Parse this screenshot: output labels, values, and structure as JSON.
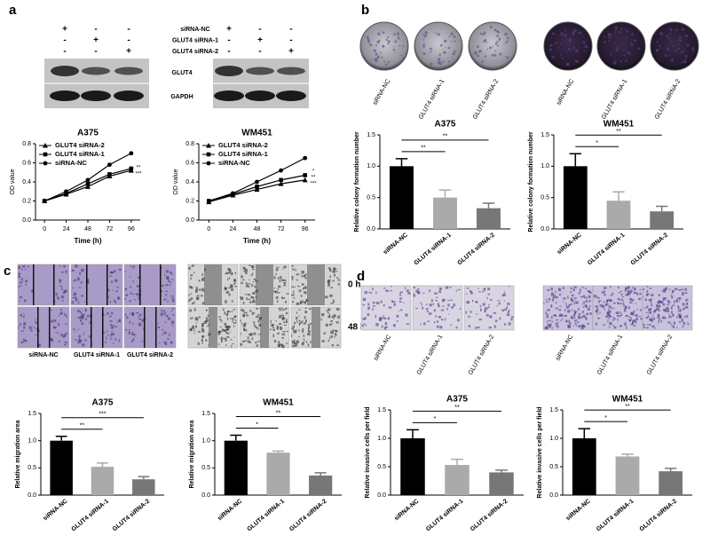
{
  "panels": [
    "a",
    "b",
    "c",
    "d"
  ],
  "blot": {
    "rows": [
      {
        "label": "siRNA-NC",
        "signs": [
          "+",
          "-",
          "-",
          "+",
          "-",
          "-"
        ]
      },
      {
        "label": "GLUT4  siRNA-1",
        "signs": [
          "-",
          "+",
          "-",
          "-",
          "+",
          "-"
        ]
      },
      {
        "label": "GLUT4  siRNA-2",
        "signs": [
          "-",
          "-",
          "+",
          "-",
          "-",
          "+"
        ]
      }
    ],
    "bands": [
      "GLUT4",
      "GAPDH"
    ]
  },
  "image_labels": [
    "siRNA-NC",
    "GLUT4 siRNA-1",
    "GLUT4 siRNA-2"
  ],
  "wound_times": [
    "0 h",
    "48 h"
  ],
  "chart_data": [
    {
      "type": "line",
      "title": "A375",
      "xlabel": "Time (h)",
      "ylabel": "OD value",
      "x": [
        0,
        24,
        48,
        72,
        96
      ],
      "xlim": [
        -10,
        106
      ],
      "xticks": [
        0,
        24,
        48,
        72,
        96
      ],
      "ylim": [
        0,
        0.8
      ],
      "yticks": [
        {
          "value": 0,
          "label": "0.0"
        },
        0.2,
        0.4,
        0.6,
        0.8
      ],
      "series": [
        {
          "name": "GLUT4 siRNA-2",
          "color": "#000000",
          "marker": "triangle",
          "values": [
            0.2,
            0.27,
            0.35,
            0.46,
            0.52
          ]
        },
        {
          "name": "GLUT4 siRNA-1",
          "color": "#000000",
          "marker": "square",
          "values": [
            0.2,
            0.28,
            0.38,
            0.48,
            0.54
          ]
        },
        {
          "name": "siRNA-NC",
          "color": "#000000",
          "marker": "circle",
          "values": [
            0.2,
            0.3,
            0.42,
            0.58,
            0.7
          ]
        }
      ],
      "annotations": [
        "**",
        "***"
      ]
    },
    {
      "type": "line",
      "title": "WM451",
      "xlabel": "Time (h)",
      "ylabel": "OD value",
      "x": [
        0,
        24,
        48,
        72,
        96
      ],
      "xlim": [
        -10,
        106
      ],
      "xticks": [
        0,
        24,
        48,
        72,
        96
      ],
      "ylim": [
        0,
        0.8
      ],
      "yticks": [
        {
          "value": 0,
          "label": "0.0"
        },
        0.2,
        0.4,
        0.6,
        0.8
      ],
      "series": [
        {
          "name": "GLUT4 siRNA-2",
          "color": "#000000",
          "marker": "triangle",
          "values": [
            0.19,
            0.26,
            0.32,
            0.38,
            0.42
          ]
        },
        {
          "name": "GLUT4 siRNA-1",
          "color": "#000000",
          "marker": "square",
          "values": [
            0.2,
            0.27,
            0.35,
            0.42,
            0.47
          ]
        },
        {
          "name": "siRNA-NC",
          "color": "#000000",
          "marker": "circle",
          "values": [
            0.2,
            0.28,
            0.4,
            0.52,
            0.65
          ]
        }
      ],
      "annotations": [
        "*",
        "**",
        "***"
      ]
    },
    {
      "type": "bar",
      "title": "A375",
      "ylabel": "Relative  colony formation number",
      "categories": [
        "siRNA-NC",
        "GLUT4 siRNA-1",
        "GLUT4 siRNA-2"
      ],
      "colors": [
        "#000000",
        "#aaaaaa",
        "#777777"
      ],
      "values": [
        1.0,
        0.5,
        0.33
      ],
      "errors": [
        0.12,
        0.12,
        0.08
      ],
      "ylim": [
        0,
        1.5
      ],
      "yticks": [
        {
          "value": 0,
          "label": "0.0"
        },
        0.5,
        {
          "value": 1,
          "label": "1.0"
        },
        1.5
      ],
      "annotations": [
        "**",
        "**"
      ]
    },
    {
      "type": "bar",
      "title": "WM451",
      "ylabel": "Relative  colony formation number",
      "categories": [
        "siRNA-NC",
        "GLUT4 siRNA-1",
        "GLUT4 siRNA-2"
      ],
      "colors": [
        "#000000",
        "#aaaaaa",
        "#777777"
      ],
      "values": [
        1.0,
        0.45,
        0.28
      ],
      "errors": [
        0.2,
        0.14,
        0.08
      ],
      "ylim": [
        0,
        1.5
      ],
      "yticks": [
        {
          "value": 0,
          "label": "0.0"
        },
        0.5,
        {
          "value": 1,
          "label": "1.0"
        },
        1.5
      ],
      "annotations": [
        "*",
        "**"
      ]
    },
    {
      "type": "bar",
      "title": "A375",
      "ylabel": "Relative migration area",
      "categories": [
        "siRNA-NC",
        "GLUT4 siRNA-1",
        "GLUT4 siRNA-2"
      ],
      "colors": [
        "#000000",
        "#aaaaaa",
        "#777777"
      ],
      "values": [
        1.0,
        0.52,
        0.29
      ],
      "errors": [
        0.08,
        0.07,
        0.05
      ],
      "ylim": [
        0,
        1.5
      ],
      "yticks": [
        {
          "value": 0,
          "label": "0.0"
        },
        0.5,
        {
          "value": 1,
          "label": "1.0"
        },
        1.5
      ],
      "annotations": [
        "**",
        "***"
      ]
    },
    {
      "type": "bar",
      "title": "WM451",
      "ylabel": "Relative migration area",
      "categories": [
        "siRNA-NC",
        "GLUT4 siRNA-1",
        "GLUT4 siRNA-2"
      ],
      "colors": [
        "#000000",
        "#aaaaaa",
        "#777777"
      ],
      "values": [
        1.0,
        0.78,
        0.36
      ],
      "errors": [
        0.1,
        0.03,
        0.05
      ],
      "ylim": [
        0,
        1.5
      ],
      "yticks": [
        {
          "value": 0,
          "label": "0.0"
        },
        0.5,
        {
          "value": 1,
          "label": "1.0"
        },
        1.5
      ],
      "annotations": [
        "*",
        "**"
      ]
    },
    {
      "type": "bar",
      "title": "A375",
      "ylabel": "Relative invasive cells per field",
      "categories": [
        "siRNA-NC",
        "GLUT4 siRNA-1",
        "GLUT4 siRNA-2"
      ],
      "colors": [
        "#000000",
        "#aaaaaa",
        "#777777"
      ],
      "values": [
        1.0,
        0.53,
        0.4
      ],
      "errors": [
        0.15,
        0.1,
        0.04
      ],
      "ylim": [
        0,
        1.5
      ],
      "yticks": [
        {
          "value": 0,
          "label": "0.0"
        },
        0.5,
        {
          "value": 1,
          "label": "1.0"
        },
        1.5
      ],
      "annotations": [
        "*",
        "**"
      ]
    },
    {
      "type": "bar",
      "title": "WM451",
      "ylabel": "Relative invasive cells per field",
      "categories": [
        "siRNA-NC",
        "GLUT4 siRNA-1",
        "GLUT4 siRNA-2"
      ],
      "colors": [
        "#000000",
        "#aaaaaa",
        "#777777"
      ],
      "values": [
        1.0,
        0.68,
        0.42
      ],
      "errors": [
        0.17,
        0.04,
        0.05
      ],
      "ylim": [
        0,
        1.5
      ],
      "yticks": [
        {
          "value": 0,
          "label": "0.0"
        },
        0.5,
        {
          "value": 1,
          "label": "1.0"
        },
        1.5
      ],
      "annotations": [
        "*",
        "**"
      ]
    }
  ]
}
